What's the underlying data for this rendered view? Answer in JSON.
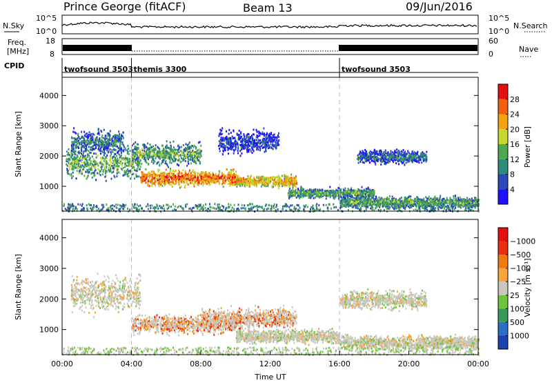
{
  "header": {
    "site": "Prince George (fitACF)",
    "beam": "Beam 13",
    "date": "09/Jun/2016"
  },
  "top_panels": {
    "nsky_label": "N.Sky",
    "nsearch_label": "N.Search",
    "nsky_ticks": [
      "10^5",
      "10^0"
    ],
    "nsearch_ticks": [
      "10^5",
      "10^0"
    ],
    "freq_label_1": "Freq.",
    "freq_label_2": "[MHz]",
    "freq_ticks": [
      "18",
      "8"
    ],
    "nave_label": "Nave",
    "nave_ticks": [
      "60",
      "0"
    ],
    "cpid_label": "CPID",
    "cpid_segments": [
      {
        "label": "twofsound 3503",
        "start_h": 0,
        "end_h": 4
      },
      {
        "label": "themis 3300",
        "start_h": 4,
        "end_h": 16
      },
      {
        "label": "twofsound 3503",
        "start_h": 16,
        "end_h": 24
      }
    ]
  },
  "chart_data": [
    {
      "type": "heatmap",
      "name": "power",
      "ylabel": "Slant Range [km]",
      "x_range_hours": [
        0,
        24
      ],
      "ylim": [
        180,
        4600
      ],
      "y_ticks": [
        1000,
        2000,
        3000,
        4000
      ],
      "colorbar_label": "Power [dB]",
      "colorbar_ticks": [
        "4",
        "8",
        "12",
        "16",
        "20",
        "24",
        "28"
      ],
      "colorbar_colors": [
        "#1e10ff",
        "#2b47b8",
        "#2f8a7a",
        "#4fa84f",
        "#c8d630",
        "#f2a40e",
        "#f06010",
        "#e41010"
      ],
      "scatter_bands": [
        {
          "start_h": 0.2,
          "end_h": 4.5,
          "center_km": 1800,
          "width_km": 700,
          "level": 3
        },
        {
          "start_h": 0.5,
          "end_h": 3.5,
          "center_km": 2500,
          "width_km": 500,
          "level": 2
        },
        {
          "start_h": 4.5,
          "end_h": 10.0,
          "center_km": 1300,
          "width_km": 350,
          "level": 6
        },
        {
          "start_h": 4.0,
          "end_h": 8.0,
          "center_km": 2100,
          "width_km": 500,
          "level": 3
        },
        {
          "start_h": 10.0,
          "end_h": 13.5,
          "center_km": 1200,
          "width_km": 250,
          "level": 5
        },
        {
          "start_h": 13.0,
          "end_h": 18.0,
          "center_km": 800,
          "width_km": 220,
          "level": 3
        },
        {
          "start_h": 16.0,
          "end_h": 24.0,
          "center_km": 500,
          "width_km": 250,
          "level": 3
        },
        {
          "start_h": 17.0,
          "end_h": 21.0,
          "center_km": 2000,
          "width_km": 300,
          "level": 2
        },
        {
          "start_h": 9.0,
          "end_h": 12.5,
          "center_km": 2500,
          "width_km": 500,
          "level": 1
        }
      ]
    },
    {
      "type": "heatmap",
      "name": "velocity",
      "ylabel": "Slant Range [km]",
      "xlabel": "Time UT",
      "x_range_hours": [
        0,
        24
      ],
      "x_ticks": [
        "00:00",
        "04:00",
        "08:00",
        "12:00",
        "16:00",
        "20:00",
        "00:00"
      ],
      "ylim": [
        180,
        4600
      ],
      "y_ticks": [
        1000,
        2000,
        3000,
        4000
      ],
      "colorbar_label": "Velocity [m s⁻¹]",
      "colorbar_ticks": [
        "1000",
        "500",
        "100",
        "25",
        "−25",
        "−100",
        "−500",
        "−1000"
      ],
      "colorbar_colors": [
        "#1e3fb0",
        "#2c6ec8",
        "#3a9a5a",
        "#6ec43a",
        "#c8c8c0",
        "#f7a43a",
        "#f07a10",
        "#e83010",
        "#e41010"
      ],
      "scatter_bands": [
        {
          "start_h": 0.5,
          "end_h": 4.5,
          "center_km": 2200,
          "width_km": 800,
          "level": 4
        },
        {
          "start_h": 4.0,
          "end_h": 10.0,
          "center_km": 1200,
          "width_km": 400,
          "level": 6
        },
        {
          "start_h": 8.0,
          "end_h": 13.5,
          "center_km": 1400,
          "width_km": 450,
          "level": 6
        },
        {
          "start_h": 10.0,
          "end_h": 16.0,
          "center_km": 800,
          "width_km": 300,
          "level": 4
        },
        {
          "start_h": 16.0,
          "end_h": 24.0,
          "center_km": 600,
          "width_km": 300,
          "level": 4
        },
        {
          "start_h": 16.0,
          "end_h": 21.0,
          "center_km": 2000,
          "width_km": 400,
          "level": 4
        }
      ]
    }
  ]
}
